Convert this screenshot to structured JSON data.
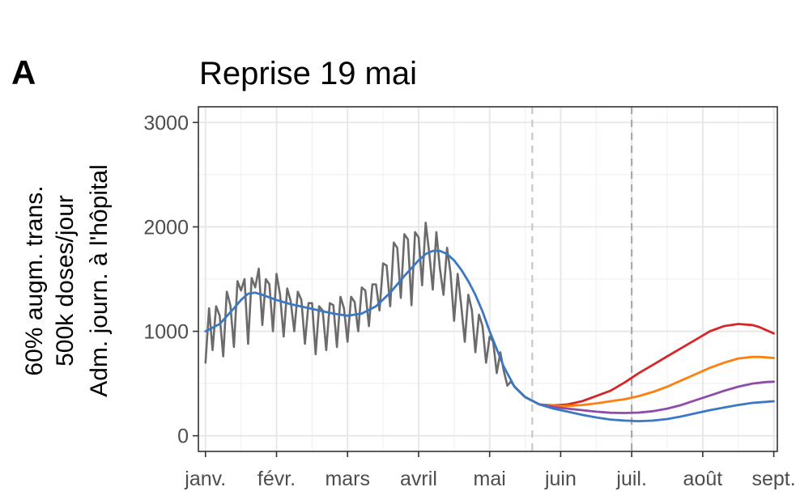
{
  "panel_letter": "A",
  "chart_data": {
    "type": "line",
    "title": "Reprise 19 mai",
    "ylabel_lines": [
      "60% augm. trans.",
      "500k doses/jour",
      "Adm. journ. à l'hôpital"
    ],
    "xlabel": "",
    "x_unit": "months since 1 janv.",
    "xlim": [
      -0.1,
      8.05
    ],
    "ylim": [
      -150,
      3150
    ],
    "yticks": [
      0,
      1000,
      2000,
      3000
    ],
    "ytick_labels": [
      "0",
      "1000",
      "2000",
      "3000"
    ],
    "xticks": [
      0,
      1,
      2,
      3,
      4,
      5,
      6,
      7,
      8
    ],
    "xtick_labels": [
      "janv.",
      "févr.",
      "mars",
      "avril",
      "mai",
      "juin",
      "juil.",
      "août",
      "sept."
    ],
    "grid": true,
    "vlines": [
      {
        "x": 4.6,
        "color": "#c8c8c8",
        "style": "dashed"
      },
      {
        "x": 6.0,
        "color": "#a8a8a8",
        "style": "dashed"
      }
    ],
    "series": [
      {
        "color": "#6b6b6b",
        "x": [
          0.0,
          0.05,
          0.1,
          0.15,
          0.2,
          0.25,
          0.3,
          0.35,
          0.4,
          0.45,
          0.5,
          0.55,
          0.6,
          0.65,
          0.7,
          0.75,
          0.8,
          0.85,
          0.9,
          0.95,
          1.0,
          1.05,
          1.1,
          1.15,
          1.2,
          1.25,
          1.3,
          1.35,
          1.4,
          1.45,
          1.5,
          1.55,
          1.6,
          1.65,
          1.7,
          1.75,
          1.8,
          1.85,
          1.9,
          1.95,
          2.0,
          2.05,
          2.1,
          2.15,
          2.2,
          2.25,
          2.3,
          2.35,
          2.4,
          2.45,
          2.5,
          2.55,
          2.6,
          2.65,
          2.7,
          2.75,
          2.8,
          2.85,
          2.9,
          2.95,
          3.0,
          3.05,
          3.1,
          3.15,
          3.2,
          3.25,
          3.3,
          3.35,
          3.4,
          3.45,
          3.5,
          3.55,
          3.6,
          3.65,
          3.7,
          3.75,
          3.8,
          3.85,
          3.9,
          3.95,
          4.0,
          4.05,
          4.1,
          4.15,
          4.2,
          4.25,
          4.3,
          4.35
        ],
        "y": [
          700,
          1220,
          820,
          1240,
          1150,
          760,
          1380,
          1250,
          850,
          1480,
          1390,
          1500,
          880,
          1510,
          1420,
          1600,
          1060,
          1500,
          1450,
          1000,
          1550,
          1350,
          950,
          1410,
          1290,
          1000,
          1380,
          1300,
          880,
          1270,
          1270,
          780,
          1240,
          1200,
          820,
          1270,
          1250,
          850,
          1330,
          1220,
          900,
          1330,
          1280,
          1000,
          1420,
          1390,
          1050,
          1450,
          1450,
          1200,
          1650,
          1630,
          1240,
          1850,
          1800,
          1320,
          1930,
          1880,
          1250,
          1950,
          1900,
          1440,
          2040,
          1750,
          1400,
          1950,
          1600,
          1350,
          1800,
          1560,
          1100,
          1550,
          1250,
          900,
          1350,
          1200,
          800,
          1160,
          1050,
          700,
          950,
          900,
          600,
          800,
          620,
          480,
          520,
          470
        ]
      },
      {
        "color": "#d62728",
        "x": [
          4.35,
          4.5,
          4.7,
          4.9,
          5.1,
          5.3,
          5.5,
          5.7,
          5.9,
          6.1,
          6.3,
          6.5,
          6.7,
          6.9,
          7.1,
          7.3,
          7.5,
          7.7,
          7.8,
          7.9,
          8.0
        ],
        "y": [
          470,
          370,
          300,
          290,
          300,
          330,
          380,
          430,
          510,
          600,
          680,
          760,
          840,
          920,
          1000,
          1050,
          1070,
          1060,
          1040,
          1010,
          980
        ]
      },
      {
        "color": "#ff7f0e",
        "x": [
          4.35,
          4.5,
          4.7,
          4.9,
          5.1,
          5.3,
          5.5,
          5.7,
          5.9,
          6.1,
          6.3,
          6.5,
          6.7,
          6.9,
          7.1,
          7.3,
          7.5,
          7.7,
          7.8,
          7.9,
          8.0
        ],
        "y": [
          470,
          370,
          300,
          285,
          285,
          295,
          310,
          330,
          350,
          380,
          420,
          470,
          530,
          590,
          650,
          700,
          740,
          755,
          755,
          750,
          745
        ]
      },
      {
        "color": "#8e4ca8",
        "x": [
          4.35,
          4.5,
          4.7,
          4.9,
          5.1,
          5.3,
          5.5,
          5.7,
          5.9,
          6.1,
          6.3,
          6.5,
          6.7,
          6.9,
          7.1,
          7.3,
          7.5,
          7.7,
          7.9,
          8.0
        ],
        "y": [
          470,
          370,
          300,
          275,
          260,
          245,
          230,
          220,
          218,
          222,
          235,
          260,
          295,
          340,
          385,
          430,
          470,
          500,
          515,
          518
        ]
      },
      {
        "color": "#3b78c4",
        "x": [
          0.0,
          0.2,
          0.4,
          0.5,
          0.6,
          0.7,
          0.8,
          1.0,
          1.2,
          1.4,
          1.6,
          1.8,
          2.0,
          2.2,
          2.4,
          2.6,
          2.8,
          3.0,
          3.1,
          3.2,
          3.3,
          3.4,
          3.5,
          3.6,
          3.7,
          3.8,
          3.9,
          4.0,
          4.1,
          4.2,
          4.35,
          4.5,
          4.7,
          4.9,
          5.1,
          5.3,
          5.5,
          5.7,
          5.9,
          6.1,
          6.3,
          6.5,
          6.7,
          6.9,
          7.1,
          7.3,
          7.5,
          7.7,
          7.9,
          8.0
        ],
        "y": [
          1000,
          1070,
          1220,
          1300,
          1360,
          1370,
          1350,
          1300,
          1260,
          1230,
          1200,
          1170,
          1150,
          1170,
          1240,
          1370,
          1530,
          1680,
          1740,
          1770,
          1770,
          1740,
          1680,
          1590,
          1480,
          1350,
          1190,
          1000,
          830,
          660,
          470,
          370,
          300,
          260,
          230,
          200,
          175,
          155,
          145,
          140,
          145,
          160,
          185,
          215,
          245,
          270,
          295,
          315,
          325,
          330
        ]
      }
    ]
  }
}
